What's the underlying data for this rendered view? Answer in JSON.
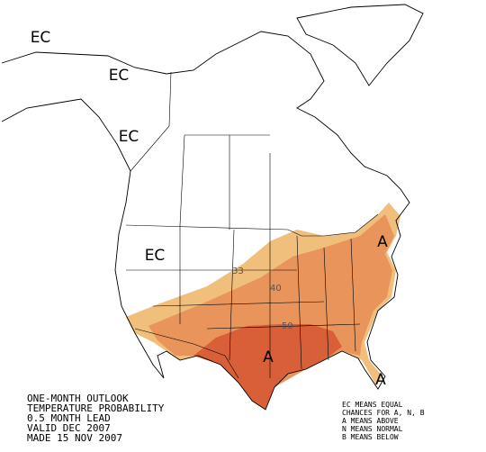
{
  "map_labels": {
    "ec": [
      "EC",
      "EC",
      "EC",
      "EC"
    ],
    "above": [
      "A",
      "A",
      "A"
    ]
  },
  "contours": [
    {
      "label": 33
    },
    {
      "label": 40
    },
    {
      "label": 50
    }
  ],
  "caption": {
    "lines": [
      "ONE-MONTH OUTLOOK",
      "TEMPERATURE PROBABILITY",
      "0.5 MONTH LEAD",
      "VALID DEC 2007",
      "MADE 15 NOV 2007"
    ]
  },
  "legend": {
    "lines": [
      "EC MEANS EQUAL",
      "CHANCES FOR A, N, B",
      "A MEANS ABOVE",
      "N MEANS NORMAL",
      "B MEANS BELOW"
    ]
  }
}
